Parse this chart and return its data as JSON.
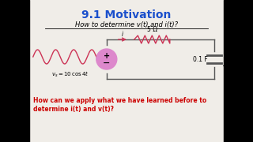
{
  "title": "9.1 Motivation",
  "title_color": "#1a4fcc",
  "subtitle": "How to determine v(t) and i(t)?",
  "bottom_text_line1": "How can we apply what we have learned before to",
  "bottom_text_line2": "determine i(t) and v(t)?",
  "bottom_text_color": "#cc0000",
  "bg_color": "#f0ede8",
  "black_bar_color": "#000000",
  "circuit_color": "#555555",
  "source_color": "#dd88cc",
  "sinusoid_color": "#cc3355",
  "resistor_color": "#cc3355",
  "label_R": "5 Ω",
  "label_C": "0.1 F",
  "label_v": "v",
  "label_i": "i",
  "black_bar_width": 0.115
}
